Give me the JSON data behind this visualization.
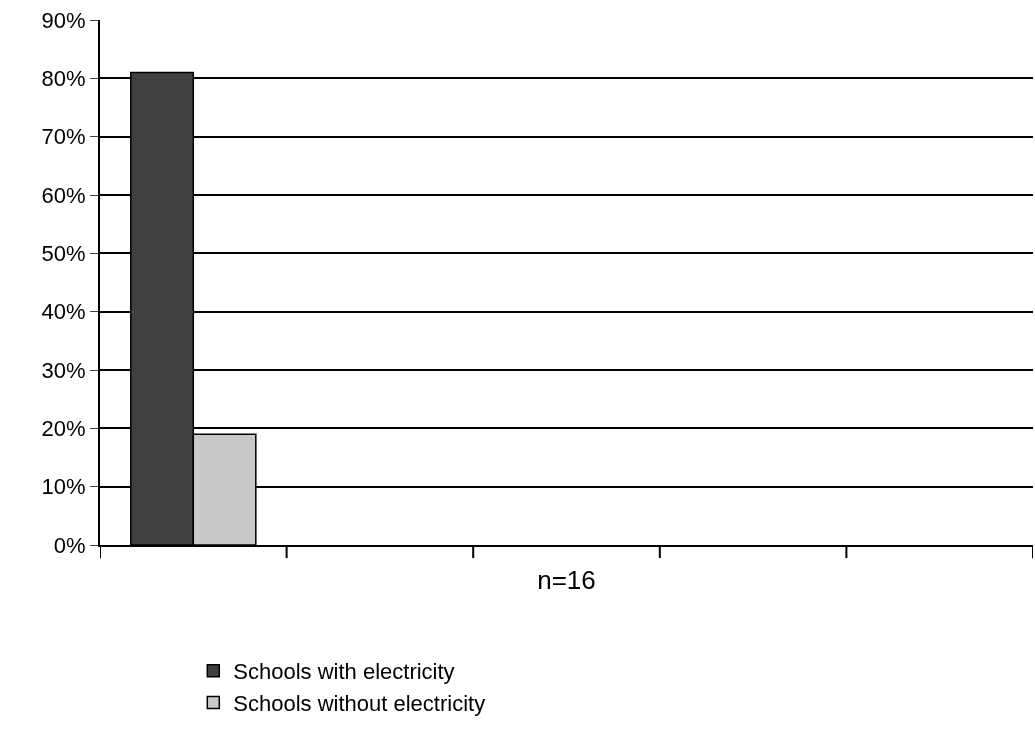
{
  "chart_data": {
    "type": "bar",
    "categories": [
      null,
      null,
      null,
      null,
      null
    ],
    "xlabel": "n=16",
    "series": [
      {
        "name": "Schools with electricity",
        "color": "#404040",
        "values": [
          81,
          null,
          null,
          null,
          null
        ]
      },
      {
        "name": "Schools without electricity",
        "color": "#c8c8c8",
        "values": [
          19,
          null,
          null,
          null,
          null
        ]
      }
    ],
    "ylim": [
      0,
      90
    ],
    "yticks": [
      {
        "value": 0,
        "label": "0%"
      },
      {
        "value": 10,
        "label": "10%"
      },
      {
        "value": 20,
        "label": "20%"
      },
      {
        "value": 30,
        "label": "30%"
      },
      {
        "value": 40,
        "label": "40%"
      },
      {
        "value": 50,
        "label": "50%"
      },
      {
        "value": 60,
        "label": "60%"
      },
      {
        "value": 70,
        "label": "70%"
      },
      {
        "value": 80,
        "label": "80%"
      },
      {
        "value": 90,
        "label": "90%"
      }
    ],
    "grid": "y",
    "legend": "bottom"
  }
}
